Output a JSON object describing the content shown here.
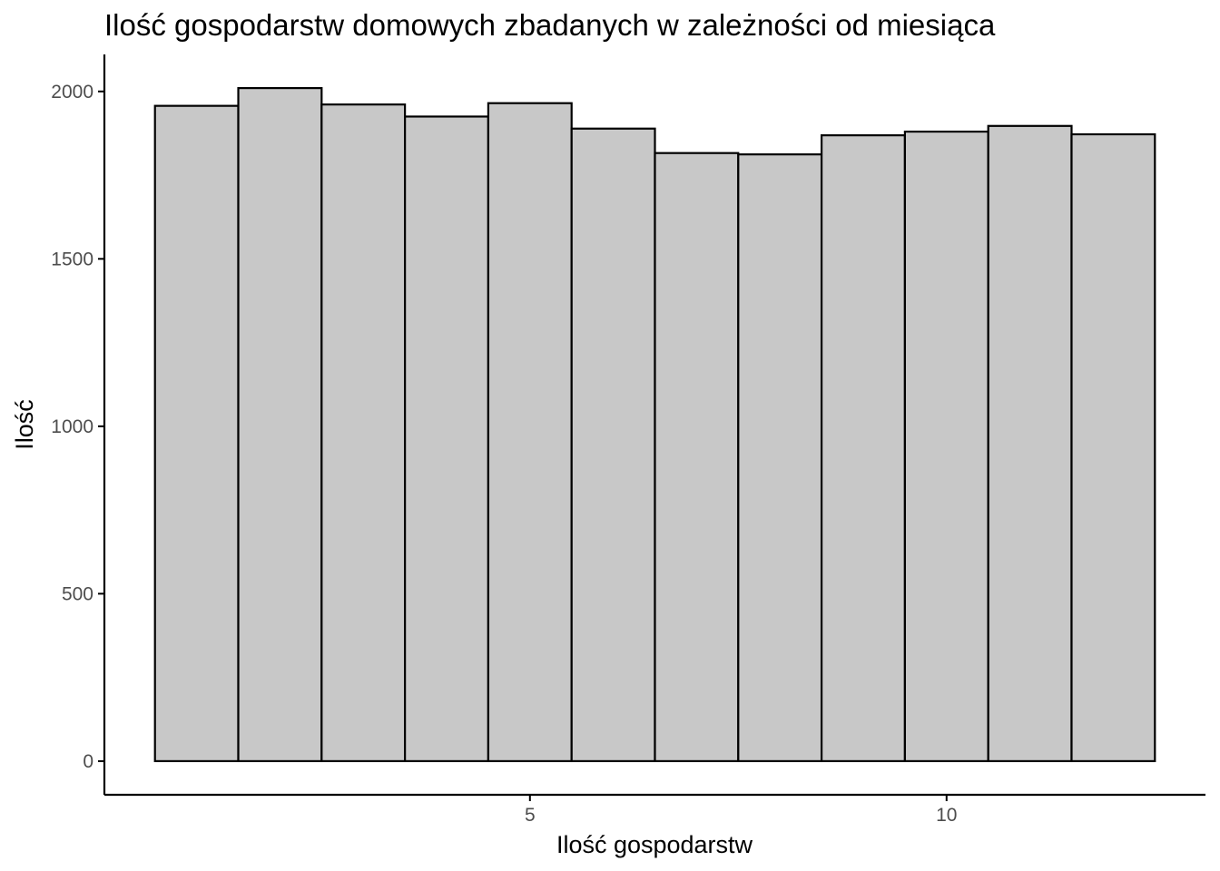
{
  "chart_data": {
    "type": "bar",
    "title": "Ilość gospodarstw domowych zbadanych w zależności od miesiąca",
    "xlabel": "Ilość gospodarstw",
    "ylabel": "Ilość",
    "bins": [
      {
        "x0": 0.5,
        "x1": 1.5,
        "value": 1957
      },
      {
        "x0": 1.5,
        "x1": 2.5,
        "value": 2010
      },
      {
        "x0": 2.5,
        "x1": 3.5,
        "value": 1961
      },
      {
        "x0": 3.5,
        "x1": 4.5,
        "value": 1925
      },
      {
        "x0": 4.5,
        "x1": 5.5,
        "value": 1965
      },
      {
        "x0": 5.5,
        "x1": 6.5,
        "value": 1889
      },
      {
        "x0": 6.5,
        "x1": 7.5,
        "value": 1816
      },
      {
        "x0": 7.5,
        "x1": 8.5,
        "value": 1812
      },
      {
        "x0": 8.5,
        "x1": 9.5,
        "value": 1869
      },
      {
        "x0": 9.5,
        "x1": 10.5,
        "value": 1880
      },
      {
        "x0": 10.5,
        "x1": 11.5,
        "value": 1897
      },
      {
        "x0": 11.5,
        "x1": 12.5,
        "value": 1872
      }
    ],
    "xlim": [
      -0.107,
      13.107
    ],
    "ylim": [
      -100.5,
      2110.5
    ],
    "x_ticks": [
      5,
      10
    ],
    "y_ticks": [
      0,
      500,
      1000,
      1500,
      2000
    ],
    "grid": false,
    "colors": {
      "fill": "#c8c8c8",
      "stroke": "#000000",
      "axis": "#000000",
      "tick_text": "#4d4d4d"
    }
  }
}
